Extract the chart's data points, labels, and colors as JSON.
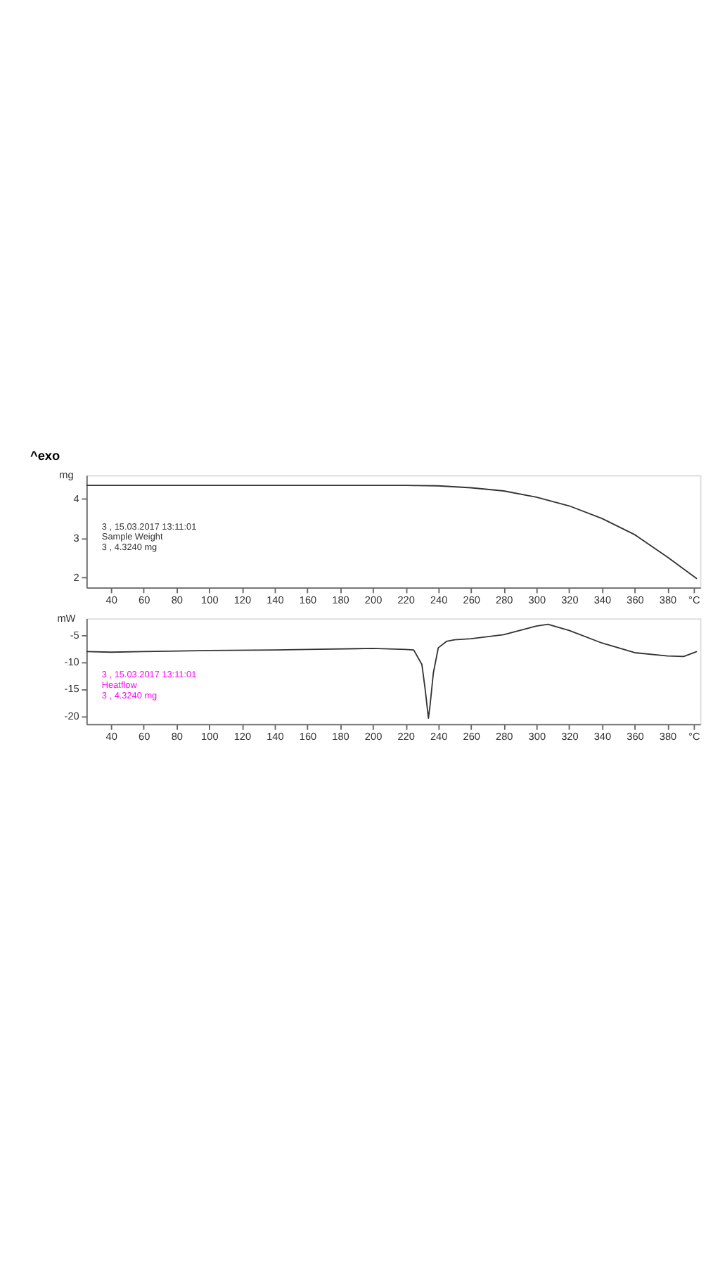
{
  "chart_data": [
    {
      "type": "line",
      "title": "^exo",
      "ylabel": "mg",
      "x": [
        25,
        40,
        100,
        160,
        200,
        220,
        240,
        260,
        280,
        300,
        320,
        340,
        360,
        380,
        398
      ],
      "series": [
        {
          "color": "#333333",
          "values": [
            4.34,
            4.34,
            4.34,
            4.34,
            4.34,
            4.34,
            4.33,
            4.28,
            4.2,
            4.04,
            3.82,
            3.5,
            3.09,
            2.52,
            1.97
          ]
        }
      ],
      "xlim": [
        25,
        400
      ],
      "xticks": [
        40,
        60,
        80,
        100,
        120,
        140,
        160,
        180,
        200,
        220,
        240,
        260,
        280,
        300,
        320,
        340,
        360,
        380,
        {
          "value": 396,
          "label": "°C"
        }
      ],
      "ylim": [
        1.75,
        4.6
      ],
      "yticks": [
        2,
        3,
        4
      ],
      "annotations": [
        "3    , 15.03.2017 13:11:01",
        "Sample Weight",
        "3    , 4.3240 mg"
      ]
    },
    {
      "type": "line",
      "ylabel": "mW",
      "x": [
        25,
        40,
        60,
        100,
        140,
        160,
        200,
        220,
        225,
        230,
        232,
        234,
        235,
        237,
        240,
        245,
        250,
        260,
        280,
        300,
        307,
        320,
        340,
        360,
        380,
        390,
        398
      ],
      "series": [
        {
          "color": "#333333",
          "values": [
            -8.0,
            -8.1,
            -8.0,
            -7.8,
            -7.7,
            -7.6,
            -7.4,
            -7.6,
            -7.7,
            -10.4,
            -15,
            -20.4,
            -18,
            -12,
            -7.3,
            -6.1,
            -5.8,
            -5.6,
            -4.85,
            -3.25,
            -2.9,
            -4.05,
            -6.4,
            -8.2,
            -8.8,
            -8.9,
            -8.0
          ]
        }
      ],
      "xlim": [
        25,
        400
      ],
      "xticks": [
        40,
        60,
        80,
        100,
        120,
        140,
        160,
        180,
        200,
        220,
        240,
        260,
        280,
        300,
        320,
        340,
        360,
        380,
        {
          "value": 396,
          "label": "°C"
        }
      ],
      "ylim": [
        -21.5,
        -1.8
      ],
      "yticks": [
        -20,
        -15,
        -10,
        -5
      ],
      "annotations": [
        "3    , 15.03.2017 13:11:01",
        "Heatflow",
        "3    , 4.3240 mg"
      ]
    }
  ]
}
